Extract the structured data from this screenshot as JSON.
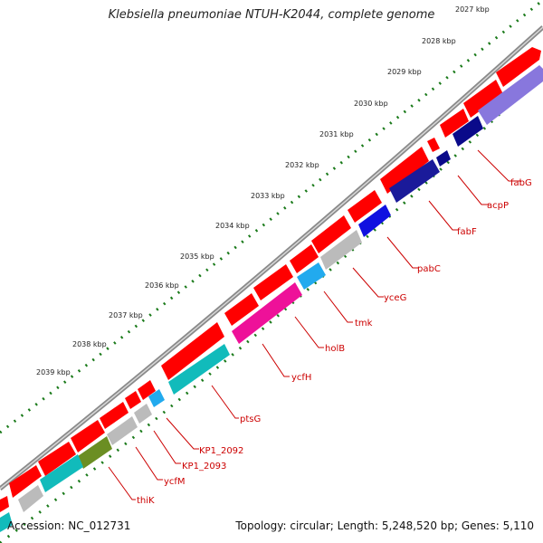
{
  "title": "Klebsiella pneumoniae NTUH-K2044, complete genome",
  "footer": {
    "accession": "Accession: NC_012731",
    "summary": "Topology: circular; Length: 5,248,520 bp; Genes: 5,110"
  },
  "scale_labels": [
    "2027 kbp",
    "2028 kbp",
    "2029 kbp",
    "2030 kbp",
    "2031 kbp",
    "2032 kbp",
    "2033 kbp",
    "2034 kbp",
    "2035 kbp",
    "2036 kbp",
    "2037 kbp",
    "2038 kbp",
    "2039 kbp"
  ],
  "genes": [
    {
      "name": "fabG",
      "color": "#8877dd"
    },
    {
      "name": "acpP",
      "color": "#0a0a8a"
    },
    {
      "name": "fabF",
      "color": "#1a1a9a"
    },
    {
      "name": "pabC",
      "color": "#1010e0"
    },
    {
      "name": "yceG",
      "color": "#bbbbbb"
    },
    {
      "name": "tmk",
      "color": "#22aaee"
    },
    {
      "name": "holB",
      "color": "#ee1199"
    },
    {
      "name": "ycfH",
      "color": "#11bbbb"
    },
    {
      "name": "ptsG",
      "color": "#11bbbb"
    },
    {
      "name": "KP1_2092",
      "color": "#22aaee"
    },
    {
      "name": "KP1_2093",
      "color": "#bbbbbb"
    },
    {
      "name": "ycfM",
      "color": "#bbbbbb"
    },
    {
      "name": "thiK",
      "color": "#6b8e23"
    }
  ],
  "colors": {
    "cds": "#ff0000",
    "backbone": "#999999",
    "ticks": "#1a7a1a",
    "labels": "#cc0000"
  }
}
